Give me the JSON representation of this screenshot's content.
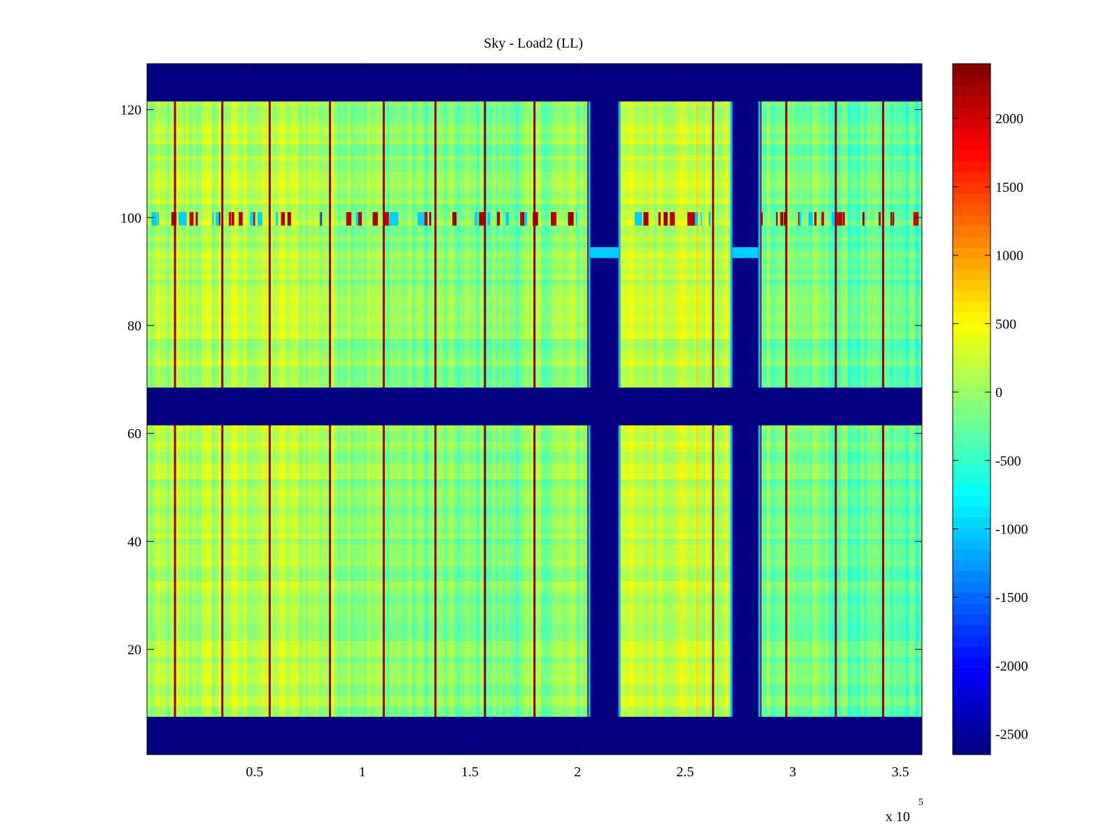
{
  "chart_data": {
    "type": "heatmap",
    "title": "Sky - Load2 (LL)",
    "xlabel": "",
    "ylabel": "",
    "xlim": [
      0,
      3.6
    ],
    "ylim": [
      0.5,
      128.5
    ],
    "x_multiplier_label": "x 10",
    "x_multiplier_exponent": "5",
    "x_ticks": [
      0.5,
      1,
      1.5,
      2,
      2.5,
      3,
      3.5
    ],
    "x_tick_labels": [
      "0.5",
      "1",
      "1.5",
      "2",
      "2.5",
      "3",
      "3.5"
    ],
    "y_ticks": [
      20,
      40,
      60,
      80,
      100,
      120
    ],
    "y_tick_labels": [
      "20",
      "40",
      "60",
      "80",
      "100",
      "120"
    ],
    "colorbar": {
      "colormap": "jet",
      "range": [
        -2650,
        2400
      ],
      "ticks": [
        2000,
        1500,
        1000,
        500,
        0,
        -500,
        -1000,
        -1500,
        -2000,
        -2500
      ],
      "tick_labels": [
        "2000",
        "1500",
        "1000",
        "500",
        "0",
        "-500",
        "-1000",
        "-1500",
        "-2000",
        "-2500"
      ]
    },
    "masked_value": -2650,
    "masked_row_bands": [
      [
        0.5,
        7.5
      ],
      [
        61.5,
        68.5
      ],
      [
        121.5,
        128.5
      ]
    ],
    "masked_column_bands": [
      [
        2.06,
        2.19
      ],
      [
        2.72,
        2.84
      ]
    ],
    "spike_columns_x": [
      0.13,
      0.35,
      0.57,
      0.85,
      1.1,
      1.34,
      1.57,
      1.8,
      2.05,
      2.63,
      2.73,
      2.85,
      2.97,
      3.2,
      3.42
    ],
    "interference_row_y": [
      98.5,
      101
    ],
    "background_level": 0
  }
}
